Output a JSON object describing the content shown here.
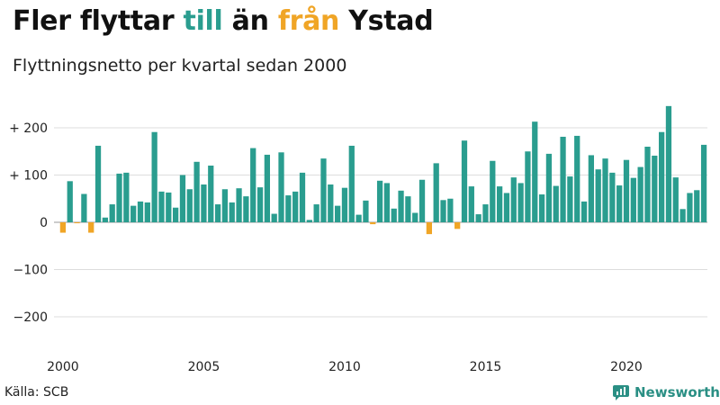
{
  "header": {
    "title_part1": "Fler flyttar ",
    "title_pos": "till",
    "title_mid": " än ",
    "title_neg": "från",
    "title_part2": " Ystad",
    "subtitle": "Flyttningsnetto per kvartal sedan 2000"
  },
  "footer": {
    "source": "Källa: SCB",
    "brand": "Newsworthy"
  },
  "colors": {
    "positive": "#2a9d8f",
    "negative": "#f0a526",
    "grid": "#dddddd",
    "zero_line": "#999999"
  },
  "chart_data": {
    "type": "bar",
    "title": "Fler flyttar till än från Ystad",
    "subtitle": "Flyttningsnetto per kvartal sedan 2000",
    "xlabel": "",
    "ylabel": "",
    "ylim": [
      -250,
      250
    ],
    "yticks": [
      {
        "value": 200,
        "label": "+ 200"
      },
      {
        "value": 100,
        "label": "+ 100"
      },
      {
        "value": 0,
        "label": "0"
      },
      {
        "value": -100,
        "label": "−100"
      },
      {
        "value": -200,
        "label": "−200"
      }
    ],
    "xticks": [
      "2000",
      "2005",
      "2010",
      "2015",
      "2020"
    ],
    "start_year": 2000,
    "grid": true,
    "values": [
      -22,
      87,
      -2,
      60,
      -22,
      162,
      10,
      38,
      103,
      105,
      35,
      44,
      42,
      191,
      65,
      63,
      31,
      100,
      70,
      128,
      80,
      120,
      38,
      70,
      42,
      72,
      55,
      157,
      74,
      143,
      18,
      148,
      57,
      65,
      105,
      5,
      38,
      135,
      80,
      35,
      73,
      162,
      16,
      46,
      -4,
      88,
      83,
      29,
      67,
      55,
      20,
      90,
      -25,
      125,
      47,
      50,
      -14,
      173,
      76,
      17,
      38,
      130,
      76,
      62,
      95,
      83,
      150,
      213,
      59,
      145,
      77,
      181,
      97,
      183,
      44,
      142,
      112,
      135,
      105,
      78,
      132,
      94,
      117,
      160,
      141,
      191,
      246,
      95,
      28,
      62,
      68,
      164
    ]
  }
}
